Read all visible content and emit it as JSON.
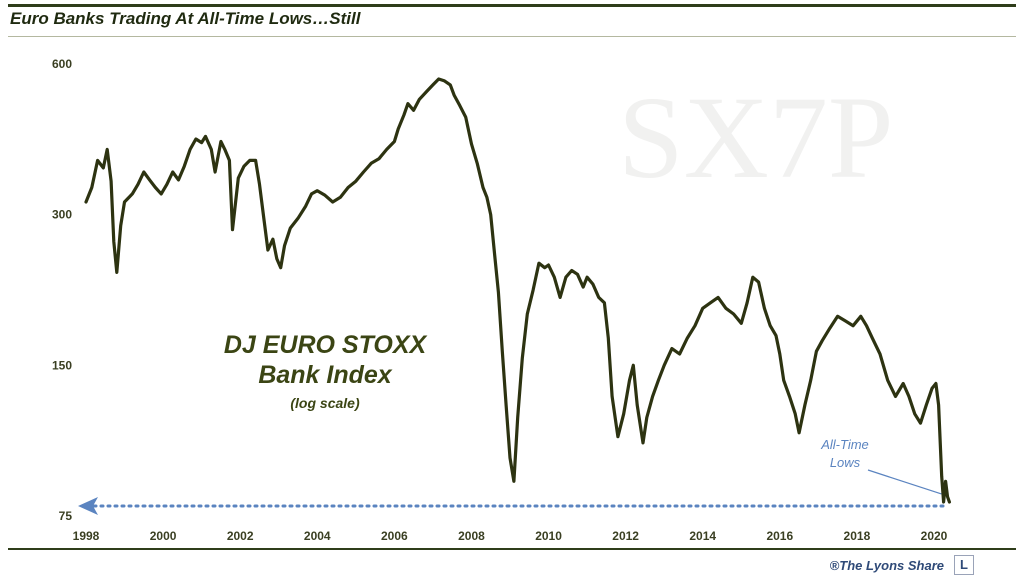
{
  "header": {
    "title": "Euro Banks Trading At All-Time Lows…Still"
  },
  "watermark": "SX7P",
  "annotations": {
    "index_name_1": "DJ EURO STOXX",
    "index_name_2": "Bank Index",
    "scale_note": "(log scale)",
    "low_label_1": "All-Time",
    "low_label_2": "Lows"
  },
  "footer": {
    "credit": "®The Lyons Share",
    "logo_letter": "L"
  },
  "colors": {
    "line": "#2d3311",
    "accent": "#5b84c0",
    "title": "#1f2a10"
  },
  "chart_data": {
    "type": "line",
    "title": "Euro Banks Trading At All-Time Lows…Still",
    "xlabel": "",
    "ylabel": "",
    "y_scale": "log",
    "ylim": [
      75,
      600
    ],
    "xlim": [
      1998.0,
      2020.4
    ],
    "y_ticks": [
      600,
      300,
      150,
      75
    ],
    "x_ticks": [
      1998,
      2000,
      2002,
      2004,
      2006,
      2008,
      2010,
      2012,
      2014,
      2016,
      2018,
      2020
    ],
    "grid": false,
    "series": [
      {
        "points": [
          [
            1998.0,
            318
          ],
          [
            1998.15,
            340
          ],
          [
            1998.3,
            385
          ],
          [
            1998.45,
            372
          ],
          [
            1998.55,
            405
          ],
          [
            1998.65,
            350
          ],
          [
            1998.72,
            265
          ],
          [
            1998.8,
            230
          ],
          [
            1998.9,
            285
          ],
          [
            1999.0,
            318
          ],
          [
            1999.2,
            330
          ],
          [
            1999.35,
            345
          ],
          [
            1999.5,
            365
          ],
          [
            1999.65,
            352
          ],
          [
            1999.8,
            340
          ],
          [
            1999.95,
            330
          ],
          [
            2000.1,
            345
          ],
          [
            2000.25,
            365
          ],
          [
            2000.4,
            352
          ],
          [
            2000.55,
            375
          ],
          [
            2000.7,
            405
          ],
          [
            2000.85,
            425
          ],
          [
            2001.0,
            418
          ],
          [
            2001.1,
            430
          ],
          [
            2001.25,
            405
          ],
          [
            2001.35,
            365
          ],
          [
            2001.5,
            420
          ],
          [
            2001.6,
            405
          ],
          [
            2001.72,
            385
          ],
          [
            2001.8,
            280
          ],
          [
            2001.95,
            355
          ],
          [
            2002.1,
            375
          ],
          [
            2002.25,
            385
          ],
          [
            2002.4,
            385
          ],
          [
            2002.5,
            345
          ],
          [
            2002.62,
            292
          ],
          [
            2002.72,
            255
          ],
          [
            2002.85,
            268
          ],
          [
            2002.95,
            245
          ],
          [
            2003.05,
            235
          ],
          [
            2003.15,
            260
          ],
          [
            2003.3,
            282
          ],
          [
            2003.5,
            295
          ],
          [
            2003.7,
            312
          ],
          [
            2003.85,
            330
          ],
          [
            2004.0,
            335
          ],
          [
            2004.2,
            328
          ],
          [
            2004.4,
            318
          ],
          [
            2004.6,
            325
          ],
          [
            2004.8,
            340
          ],
          [
            2005.0,
            350
          ],
          [
            2005.2,
            365
          ],
          [
            2005.4,
            380
          ],
          [
            2005.6,
            388
          ],
          [
            2005.8,
            405
          ],
          [
            2006.0,
            420
          ],
          [
            2006.1,
            445
          ],
          [
            2006.25,
            475
          ],
          [
            2006.35,
            500
          ],
          [
            2006.5,
            485
          ],
          [
            2006.65,
            510
          ],
          [
            2006.85,
            530
          ],
          [
            2007.0,
            545
          ],
          [
            2007.15,
            560
          ],
          [
            2007.3,
            555
          ],
          [
            2007.45,
            545
          ],
          [
            2007.55,
            520
          ],
          [
            2007.7,
            495
          ],
          [
            2007.85,
            470
          ],
          [
            2008.0,
            415
          ],
          [
            2008.15,
            380
          ],
          [
            2008.3,
            340
          ],
          [
            2008.4,
            325
          ],
          [
            2008.5,
            300
          ],
          [
            2008.6,
            250
          ],
          [
            2008.7,
            210
          ],
          [
            2008.8,
            160
          ],
          [
            2008.9,
            125
          ],
          [
            2009.0,
            98
          ],
          [
            2009.1,
            88
          ],
          [
            2009.2,
            118
          ],
          [
            2009.32,
            155
          ],
          [
            2009.45,
            190
          ],
          [
            2009.6,
            212
          ],
          [
            2009.75,
            240
          ],
          [
            2009.9,
            235
          ],
          [
            2010.0,
            238
          ],
          [
            2010.15,
            225
          ],
          [
            2010.3,
            205
          ],
          [
            2010.45,
            225
          ],
          [
            2010.6,
            232
          ],
          [
            2010.75,
            228
          ],
          [
            2010.9,
            215
          ],
          [
            2011.0,
            225
          ],
          [
            2011.15,
            218
          ],
          [
            2011.3,
            205
          ],
          [
            2011.45,
            200
          ],
          [
            2011.55,
            170
          ],
          [
            2011.65,
            130
          ],
          [
            2011.8,
            108
          ],
          [
            2011.95,
            120
          ],
          [
            2012.1,
            140
          ],
          [
            2012.2,
            150
          ],
          [
            2012.3,
            125
          ],
          [
            2012.45,
            105
          ],
          [
            2012.55,
            118
          ],
          [
            2012.7,
            130
          ],
          [
            2012.85,
            140
          ],
          [
            2013.0,
            150
          ],
          [
            2013.2,
            162
          ],
          [
            2013.4,
            158
          ],
          [
            2013.6,
            170
          ],
          [
            2013.8,
            180
          ],
          [
            2014.0,
            195
          ],
          [
            2014.2,
            200
          ],
          [
            2014.4,
            205
          ],
          [
            2014.6,
            195
          ],
          [
            2014.8,
            190
          ],
          [
            2015.0,
            182
          ],
          [
            2015.15,
            200
          ],
          [
            2015.3,
            225
          ],
          [
            2015.45,
            220
          ],
          [
            2015.6,
            195
          ],
          [
            2015.75,
            180
          ],
          [
            2015.9,
            172
          ],
          [
            2016.0,
            158
          ],
          [
            2016.1,
            140
          ],
          [
            2016.25,
            130
          ],
          [
            2016.4,
            120
          ],
          [
            2016.5,
            110
          ],
          [
            2016.65,
            125
          ],
          [
            2016.8,
            140
          ],
          [
            2016.95,
            160
          ],
          [
            2017.1,
            168
          ],
          [
            2017.3,
            178
          ],
          [
            2017.5,
            188
          ],
          [
            2017.7,
            184
          ],
          [
            2017.9,
            180
          ],
          [
            2018.1,
            188
          ],
          [
            2018.25,
            180
          ],
          [
            2018.4,
            170
          ],
          [
            2018.6,
            158
          ],
          [
            2018.8,
            140
          ],
          [
            2019.0,
            130
          ],
          [
            2019.2,
            138
          ],
          [
            2019.35,
            130
          ],
          [
            2019.5,
            120
          ],
          [
            2019.65,
            115
          ],
          [
            2019.8,
            125
          ],
          [
            2019.95,
            135
          ],
          [
            2020.05,
            138
          ],
          [
            2020.12,
            125
          ],
          [
            2020.2,
            90
          ],
          [
            2020.25,
            80
          ],
          [
            2020.3,
            88
          ],
          [
            2020.35,
            82
          ],
          [
            2020.4,
            80
          ]
        ]
      }
    ]
  }
}
